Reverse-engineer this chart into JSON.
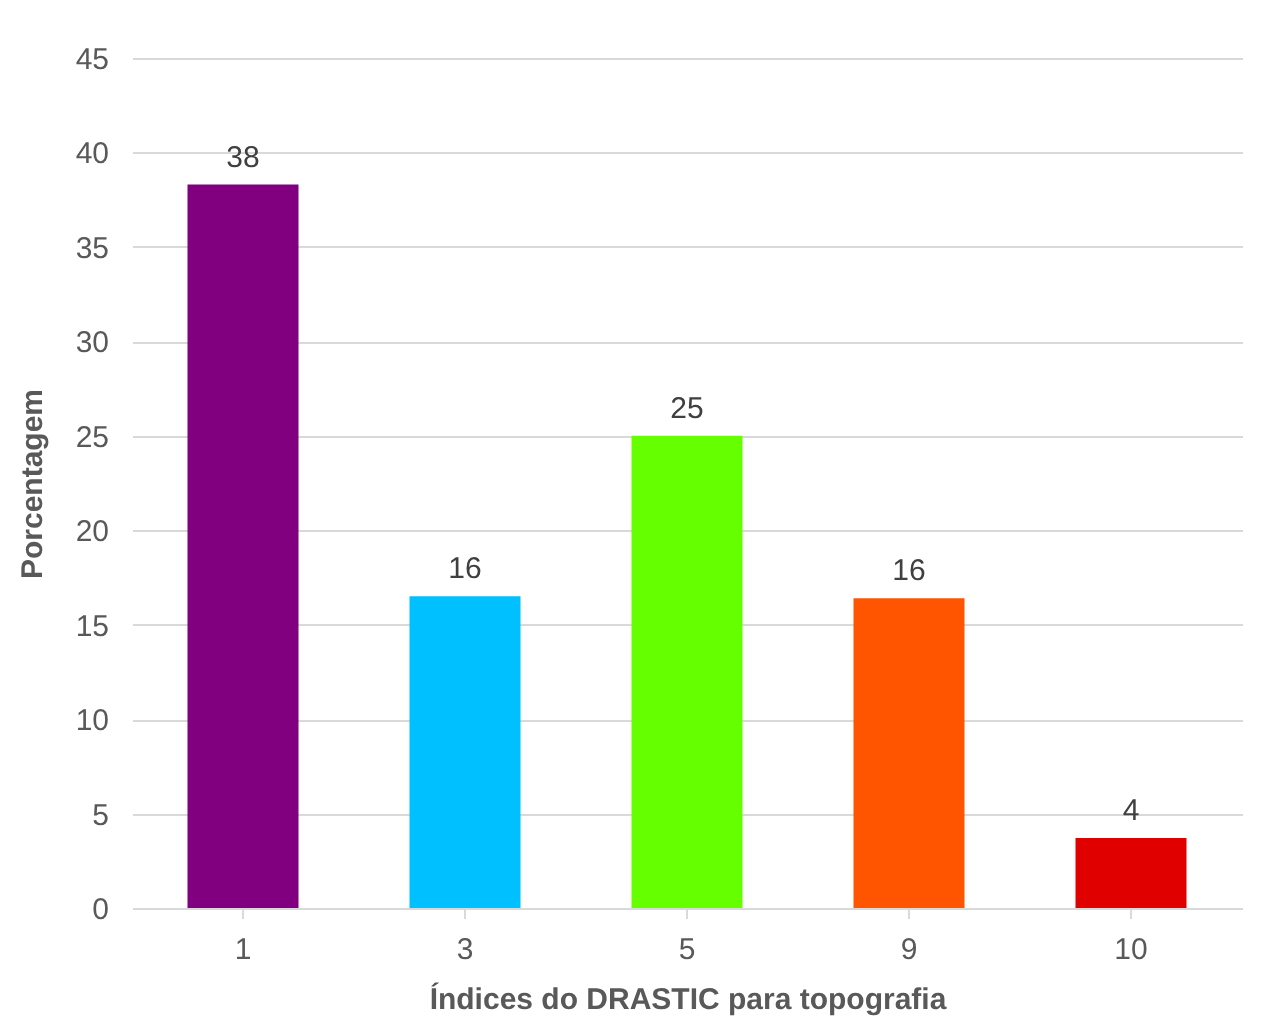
{
  "chart_data": {
    "type": "bar",
    "xlabel": "Índices do DRASTIC para topografia",
    "ylabel": "Porcentagem",
    "categories": [
      "1",
      "3",
      "5",
      "9",
      "10"
    ],
    "values": [
      38.3,
      16.5,
      25,
      16.4,
      3.7
    ],
    "value_labels": [
      "38",
      "16",
      "25",
      "16",
      "4"
    ],
    "colors": [
      "#800080",
      "#00c0ff",
      "#66ff00",
      "#ff5500",
      "#e00000"
    ],
    "ylim": [
      0,
      45
    ],
    "yticks": [
      0,
      5,
      10,
      15,
      20,
      25,
      30,
      35,
      40,
      45
    ],
    "grid": "y"
  }
}
